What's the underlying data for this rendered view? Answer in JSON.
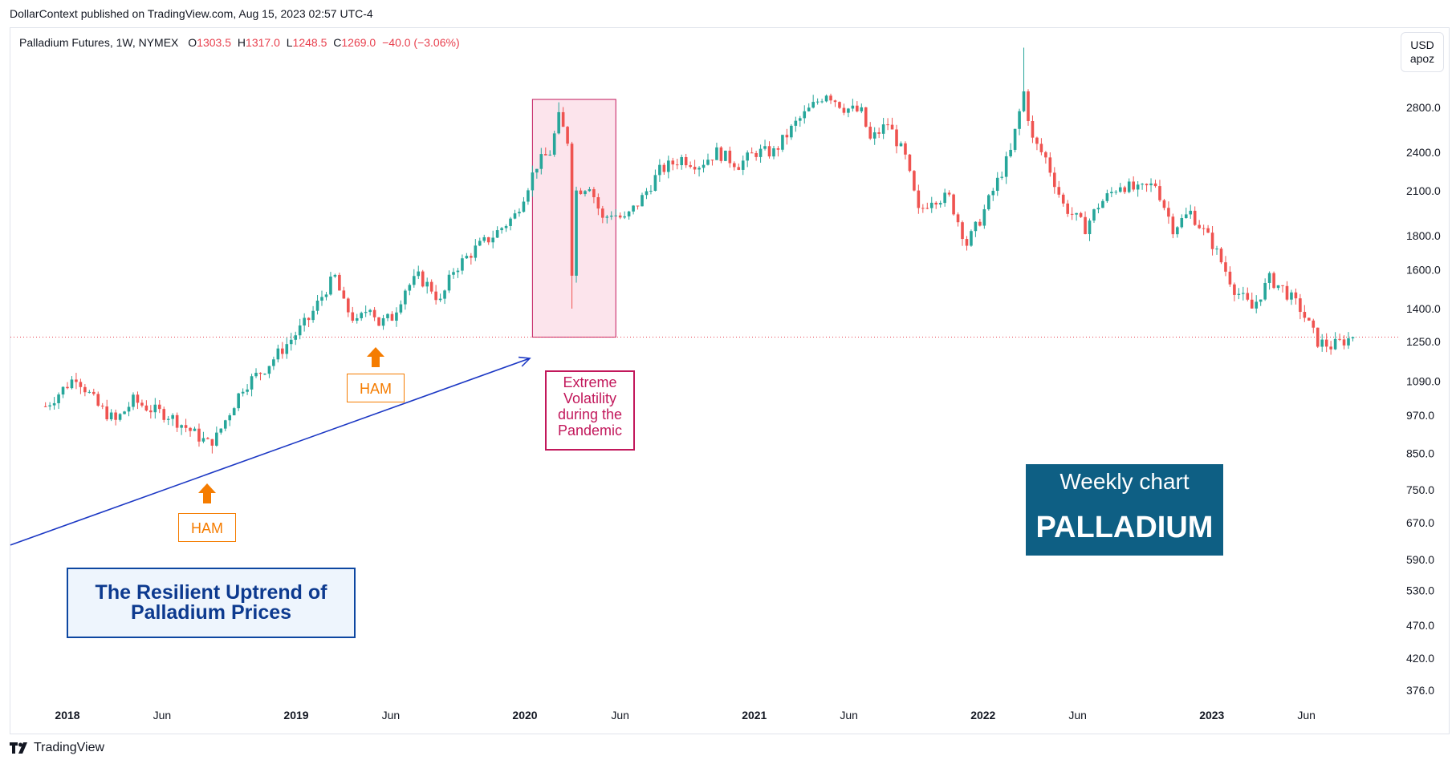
{
  "header": {
    "published": "DollarContext published on TradingView.com, Aug 15, 2023 02:57 UTC-4"
  },
  "legend": {
    "symbol": "Palladium Futures, 1W, NYMEX",
    "open_label": "O",
    "open": "1303.5",
    "high_label": "H",
    "high": "1317.0",
    "low_label": "L",
    "low": "1248.5",
    "close_label": "C",
    "close": "1269.0",
    "change": "−40.0 (−3.06%)"
  },
  "currency": {
    "unit": "USD",
    "per": "apoz"
  },
  "annotations": {
    "ham_1": "HAM",
    "ham_2": "HAM",
    "volatility": "Extreme Volatility during the Pandemic",
    "uptrend": "The Resilient Uptrend of Palladium Prices",
    "badge_top": "Weekly chart",
    "badge_main": "PALLADIUM"
  },
  "footer": {
    "brand": "TradingView"
  },
  "colors": {
    "up": "#26a69a",
    "down": "#ef5350",
    "trendline": "#1c38c4",
    "arrow": "#f57c00",
    "highlight": "#c2185b",
    "badge": "#0e5f84",
    "last_price_line": "#e8404e"
  },
  "chart_data": {
    "type": "candlestick",
    "timeframe": "1W",
    "scale": "log",
    "y_ticks": [
      2800,
      2400,
      2100,
      1800,
      1600,
      1400,
      1250,
      1090,
      970,
      850,
      750,
      670,
      590,
      530,
      470,
      420,
      376
    ],
    "y_tick_labels": [
      "2800.0",
      "2400.0",
      "2100.0",
      "1800.0",
      "1600.0",
      "1400.0",
      "1250.0",
      "1090.0",
      "970.0",
      "850.0",
      "750.0",
      "670.0",
      "590.0",
      "530.0",
      "470.0",
      "420.0",
      "376.0"
    ],
    "x_ticks": [
      {
        "label": "2018",
        "date": "2018-01-01",
        "bold": true
      },
      {
        "label": "Jun",
        "date": "2018-06-01",
        "bold": false
      },
      {
        "label": "2019",
        "date": "2019-01-01",
        "bold": true
      },
      {
        "label": "Jun",
        "date": "2019-06-01",
        "bold": false
      },
      {
        "label": "2020",
        "date": "2020-01-01",
        "bold": true
      },
      {
        "label": "Jun",
        "date": "2020-06-01",
        "bold": false
      },
      {
        "label": "2021",
        "date": "2021-01-01",
        "bold": true
      },
      {
        "label": "Jun",
        "date": "2021-06-01",
        "bold": false
      },
      {
        "label": "2022",
        "date": "2022-01-01",
        "bold": true
      },
      {
        "label": "Jun",
        "date": "2022-06-01",
        "bold": false
      },
      {
        "label": "2023",
        "date": "2023-01-01",
        "bold": true
      },
      {
        "label": "Jun",
        "date": "2023-06-01",
        "bold": false
      }
    ],
    "last_price": 1269.0,
    "close_path": [
      [
        "2017-11-27",
        1000
      ],
      [
        "2018-01-15",
        1110
      ],
      [
        "2018-02-19",
        1000
      ],
      [
        "2018-03-19",
        950
      ],
      [
        "2018-04-16",
        1020
      ],
      [
        "2018-05-14",
        990
      ],
      [
        "2018-06-11",
        970
      ],
      [
        "2018-07-09",
        930
      ],
      [
        "2018-08-13",
        880
      ],
      [
        "2018-08-27",
        900
      ],
      [
        "2018-10-08",
        1070
      ],
      [
        "2018-11-12",
        1140
      ],
      [
        "2018-12-24",
        1260
      ],
      [
        "2019-01-21",
        1350
      ],
      [
        "2019-02-18",
        1500
      ],
      [
        "2019-03-04",
        1560
      ],
      [
        "2019-03-18",
        1420
      ],
      [
        "2019-04-08",
        1330
      ],
      [
        "2019-04-29",
        1420
      ],
      [
        "2019-05-13",
        1330
      ],
      [
        "2019-06-03",
        1360
      ],
      [
        "2019-06-24",
        1500
      ],
      [
        "2019-07-15",
        1560
      ],
      [
        "2019-08-05",
        1500
      ],
      [
        "2019-08-19",
        1430
      ],
      [
        "2019-09-09",
        1600
      ],
      [
        "2019-10-14",
        1720
      ],
      [
        "2019-11-11",
        1800
      ],
      [
        "2019-12-16",
        1930
      ],
      [
        "2020-01-20",
        2300
      ],
      [
        "2020-02-10",
        2400
      ],
      [
        "2020-02-24",
        2700
      ],
      [
        "2020-03-09",
        2500
      ],
      [
        "2020-03-16",
        1600
      ],
      [
        "2020-03-23",
        2100
      ],
      [
        "2020-04-13",
        2150
      ],
      [
        "2020-05-04",
        1900
      ],
      [
        "2020-05-18",
        1950
      ],
      [
        "2020-06-08",
        1900
      ],
      [
        "2020-07-06",
        2050
      ],
      [
        "2020-08-03",
        2250
      ],
      [
        "2020-09-07",
        2350
      ],
      [
        "2020-10-05",
        2300
      ],
      [
        "2020-11-02",
        2400
      ],
      [
        "2020-12-07",
        2300
      ],
      [
        "2021-01-04",
        2400
      ],
      [
        "2021-02-01",
        2400
      ],
      [
        "2021-03-08",
        2650
      ],
      [
        "2021-04-26",
        2950
      ],
      [
        "2021-05-24",
        2800
      ],
      [
        "2021-06-21",
        2750
      ],
      [
        "2021-07-05",
        2500
      ],
      [
        "2021-08-02",
        2650
      ],
      [
        "2021-08-30",
        2350
      ],
      [
        "2021-09-20",
        1950
      ],
      [
        "2021-10-11",
        2050
      ],
      [
        "2021-11-08",
        2050
      ],
      [
        "2021-12-06",
        1750
      ],
      [
        "2021-12-27",
        1900
      ],
      [
        "2022-01-17",
        2100
      ],
      [
        "2022-02-14",
        2400
      ],
      [
        "2022-03-07",
        2950
      ],
      [
        "2022-03-21",
        2500
      ],
      [
        "2022-04-11",
        2350
      ],
      [
        "2022-05-09",
        2000
      ],
      [
        "2022-06-13",
        1850
      ],
      [
        "2022-07-04",
        2000
      ],
      [
        "2022-08-08",
        2150
      ],
      [
        "2022-09-05",
        2100
      ],
      [
        "2022-10-03",
        2150
      ],
      [
        "2022-10-31",
        1850
      ],
      [
        "2022-11-28",
        1950
      ],
      [
        "2023-01-02",
        1750
      ],
      [
        "2023-02-06",
        1500
      ],
      [
        "2023-03-06",
        1400
      ],
      [
        "2023-04-03",
        1550
      ],
      [
        "2023-04-24",
        1500
      ],
      [
        "2023-05-22",
        1400
      ],
      [
        "2023-06-19",
        1250
      ],
      [
        "2023-07-10",
        1230
      ],
      [
        "2023-08-14",
        1269
      ]
    ],
    "extremes": [
      {
        "date": "2020-02-24",
        "high": 2850
      },
      {
        "date": "2020-03-16",
        "low": 1400
      },
      {
        "date": "2022-03-07",
        "high": 3440
      },
      {
        "date": "2018-08-20",
        "low": 850
      }
    ],
    "trendline": {
      "from": [
        "2017-11-27",
        620
      ],
      "to": [
        "2020-01-20",
        1200
      ]
    }
  }
}
